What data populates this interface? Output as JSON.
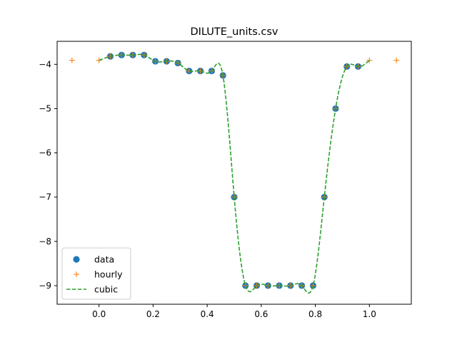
{
  "chart_data": {
    "type": "scatter",
    "title": "DILUTE_units.csv",
    "xlabel": "",
    "ylabel": "",
    "xlim": [
      -0.155,
      1.155
    ],
    "ylim": [
      -9.42,
      -3.48
    ],
    "x_ticks": [
      0.0,
      0.2,
      0.4,
      0.6,
      0.8,
      1.0
    ],
    "x_tick_labels": [
      "0.0",
      "0.2",
      "0.4",
      "0.6",
      "0.8",
      "1.0"
    ],
    "y_ticks": [
      -4,
      -5,
      -6,
      -7,
      -8,
      -9
    ],
    "y_tick_labels": [
      "−4",
      "−5",
      "−6",
      "−7",
      "−8",
      "−9"
    ],
    "grid": false,
    "legend_position": "lower-left",
    "colors": {
      "data": "#1f77b4",
      "hourly": "#ff7f0e",
      "cubic": "#2ca02c"
    },
    "series": [
      {
        "name": "data",
        "marker": "circle",
        "x": [
          0.0417,
          0.0833,
          0.125,
          0.1667,
          0.2083,
          0.25,
          0.2917,
          0.3333,
          0.375,
          0.4167,
          0.4583,
          0.5,
          0.5417,
          0.5833,
          0.625,
          0.6667,
          0.7083,
          0.75,
          0.7917,
          0.8333,
          0.875,
          0.9167,
          0.9583
        ],
        "y": [
          -3.82,
          -3.79,
          -3.79,
          -3.79,
          -3.93,
          -3.93,
          -3.97,
          -4.15,
          -4.15,
          -4.15,
          -4.25,
          -7.0,
          -9.0,
          -9.0,
          -9.0,
          -9.0,
          -9.0,
          -9.0,
          -9.0,
          -7.0,
          -5.0,
          -4.05,
          -4.05
        ]
      },
      {
        "name": "hourly",
        "marker": "plus",
        "x": [
          -0.1,
          0.0,
          0.0417,
          0.0833,
          0.125,
          0.1667,
          0.2083,
          0.25,
          0.2917,
          0.3333,
          0.375,
          0.4167,
          0.4583,
          0.5,
          0.5417,
          0.5833,
          0.625,
          0.6667,
          0.7083,
          0.75,
          0.7917,
          0.8333,
          0.875,
          0.9167,
          0.9583,
          1.0,
          1.1
        ],
        "y": [
          -3.91,
          -3.91,
          -3.82,
          -3.79,
          -3.79,
          -3.79,
          -3.93,
          -3.93,
          -3.97,
          -4.15,
          -4.15,
          -4.15,
          -4.25,
          -7.0,
          -9.0,
          -9.0,
          -9.0,
          -9.0,
          -9.0,
          -9.0,
          -9.0,
          -7.0,
          -5.0,
          -4.05,
          -4.05,
          -3.91,
          -3.91
        ]
      },
      {
        "name": "cubic",
        "line": "dashed",
        "x": [
          0.0,
          0.0417,
          0.0833,
          0.125,
          0.1667,
          0.2083,
          0.25,
          0.2917,
          0.3333,
          0.375,
          0.4167,
          0.4583,
          0.5,
          0.5417,
          0.5833,
          0.625,
          0.6667,
          0.7083,
          0.75,
          0.7917,
          0.8333,
          0.875,
          0.9167,
          0.9583,
          1.0
        ],
        "y": [
          -3.91,
          -3.82,
          -3.79,
          -3.79,
          -3.79,
          -3.93,
          -3.93,
          -3.97,
          -4.15,
          -4.15,
          -4.15,
          -4.25,
          -7.0,
          -9.0,
          -9.0,
          -9.0,
          -9.0,
          -9.0,
          -9.0,
          -9.0,
          -7.0,
          -5.0,
          -4.05,
          -4.05,
          -3.91
        ]
      }
    ]
  }
}
